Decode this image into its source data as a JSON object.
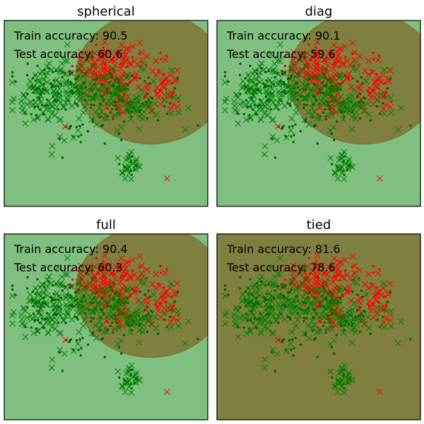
{
  "chart_data": [
    {
      "type": "scatter",
      "title": "spherical",
      "annotations": [
        "Train accuracy: 90.5",
        "Test accuracy: 60.6"
      ],
      "background_color": "#7fbf7f",
      "ellipse": {
        "center": [
          0.72,
          0.31
        ],
        "width": 0.74,
        "height": 0.71,
        "angle": 0,
        "color": "#7f7f3f"
      }
    },
    {
      "type": "scatter",
      "title": "diag",
      "annotations": [
        "Train accuracy: 90.1",
        "Test accuracy: 59.6"
      ],
      "background_color": "#7fbf7f",
      "ellipse": {
        "center": [
          0.72,
          0.31
        ],
        "width": 0.74,
        "height": 0.71,
        "angle": 0,
        "color": "#7f7f3f"
      }
    },
    {
      "type": "scatter",
      "title": "full",
      "annotations": [
        "Train accuracy: 90.4",
        "Test accuracy: 60.3"
      ],
      "background_color": "#7fbf7f",
      "ellipse": {
        "center": [
          0.72,
          0.31
        ],
        "width": 0.74,
        "height": 0.71,
        "angle": 0,
        "color": "#7f7f3f"
      }
    },
    {
      "type": "scatter",
      "title": "tied",
      "annotations": [
        "Train accuracy: 81.6",
        "Test accuracy: 78.6"
      ],
      "background_color": "#7f7f3f",
      "ellipse": null
    }
  ],
  "colors": {
    "class_a": "#008000",
    "class_b": "#ff0000",
    "class_a_train": "#006400"
  },
  "markers": {
    "train": "dot",
    "test": "x"
  }
}
